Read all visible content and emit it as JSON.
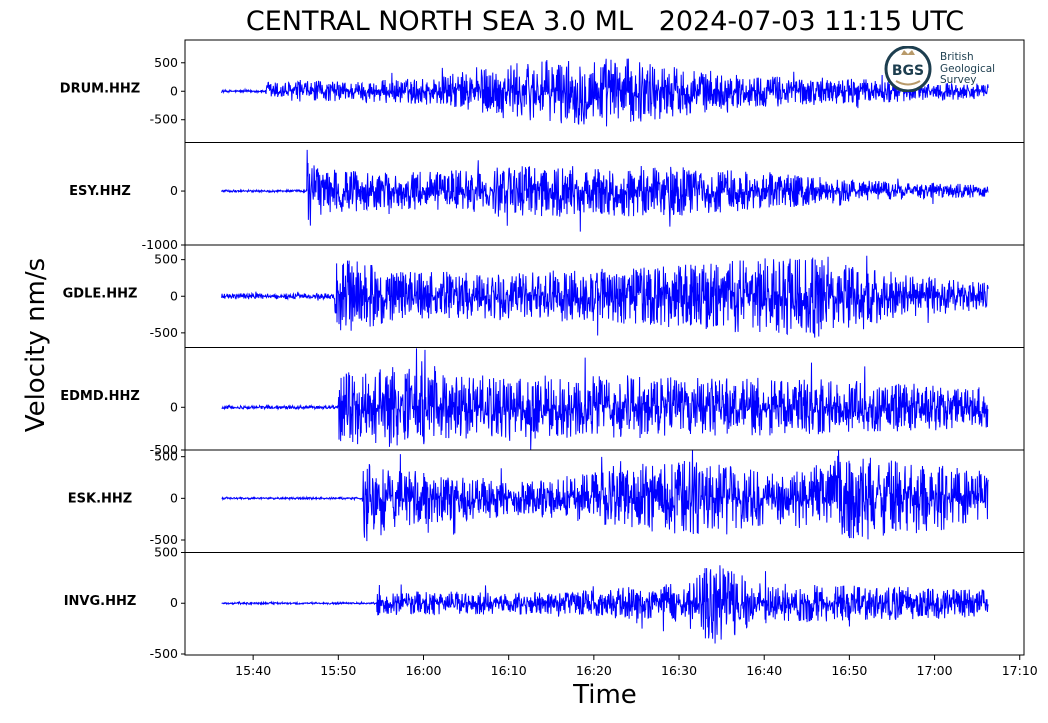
{
  "chart_data": {
    "type": "line",
    "title": "CENTRAL NORTH SEA 3.0 ML   2024-07-03 11:15 UTC",
    "xlabel": "Time",
    "ylabel": "Velocity nm/s",
    "x_ticks": [
      "15:40",
      "15:50",
      "16:00",
      "16:10",
      "16:20",
      "16:30",
      "16:40",
      "16:50",
      "17:00",
      "17:10"
    ],
    "x_range": [
      "15:32",
      "17:10.5"
    ],
    "data_start": "15:36.3",
    "data_end": "17:06.3",
    "line_color": "#0000ff",
    "series": [
      {
        "name": "DRUM.HHZ",
        "ylim": [
          -900,
          900
        ],
        "ticks": [
          {
            "v": 500,
            "label": "500"
          },
          {
            "v": 0,
            "label": "0"
          },
          {
            "v": -500,
            "label": "-500"
          }
        ],
        "onset": "15:41.5",
        "noise": 20,
        "envelope": [
          [
            15.0,
            180
          ],
          [
            25.0,
            250
          ],
          [
            33.0,
            480
          ],
          [
            45.0,
            640
          ],
          [
            60.0,
            300
          ],
          [
            85.0,
            160
          ],
          [
            90.0,
            130
          ]
        ]
      },
      {
        "name": "ESY.HHZ",
        "ylim": [
          -1000,
          900
        ],
        "ticks": [
          {
            "v": 0,
            "label": "0"
          },
          {
            "v": -1000,
            "label": "-1000"
          }
        ],
        "onset": "15:46.3",
        "noise": 20,
        "envelope": [
          [
            10.0,
            800
          ],
          [
            11.0,
            450
          ],
          [
            20.0,
            330
          ],
          [
            40.0,
            500
          ],
          [
            55.0,
            450
          ],
          [
            75.0,
            200
          ],
          [
            90.0,
            120
          ]
        ]
      },
      {
        "name": "GDLE.HHZ",
        "ylim": [
          -700,
          700
        ],
        "ticks": [
          {
            "v": 500,
            "label": "500"
          },
          {
            "v": 0,
            "label": "0"
          },
          {
            "v": -500,
            "label": "-500"
          }
        ],
        "onset": "15:49.6",
        "noise": 40,
        "envelope": [
          [
            13.3,
            580
          ],
          [
            20.0,
            360
          ],
          [
            30.0,
            320
          ],
          [
            50.0,
            400
          ],
          [
            70.0,
            580
          ],
          [
            80.0,
            300
          ],
          [
            90.0,
            180
          ]
        ]
      },
      {
        "name": "EDMD.HHZ",
        "ylim": [
          -500,
          700
        ],
        "ticks": [
          {
            "v": 0,
            "label": "0"
          },
          {
            "v": -500,
            "label": "-500"
          }
        ],
        "onset": "15:49.9",
        "noise": 20,
        "envelope": [
          [
            13.6,
            420
          ],
          [
            20.0,
            480
          ],
          [
            30.0,
            380
          ],
          [
            50.0,
            360
          ],
          [
            70.0,
            330
          ],
          [
            90.0,
            240
          ]
        ]
      },
      {
        "name": "ESK.HHZ",
        "ylim": [
          -650,
          580
        ],
        "ticks": [
          {
            "v": 500,
            "label": "500"
          },
          {
            "v": 0,
            "label": "0"
          },
          {
            "v": -500,
            "label": "-500"
          }
        ],
        "onset": "15:52.8",
        "noise": 12,
        "envelope": [
          [
            16.5,
            560
          ],
          [
            20.0,
            380
          ],
          [
            35.0,
            200
          ],
          [
            55.0,
            460
          ],
          [
            65.0,
            300
          ],
          [
            75.0,
            520
          ],
          [
            90.0,
            320
          ]
        ]
      },
      {
        "name": "INVG.HHZ",
        "ylim": [
          -510,
          500
        ],
        "ticks": [
          {
            "v": 500,
            "label": "500"
          },
          {
            "v": 0,
            "label": "0"
          },
          {
            "v": -500,
            "label": "-500"
          }
        ],
        "onset": "15:54.5",
        "noise": 10,
        "envelope": [
          [
            18.2,
            120
          ],
          [
            40.0,
            110
          ],
          [
            54.0,
            200
          ],
          [
            57.0,
            450
          ],
          [
            63.0,
            200
          ],
          [
            90.0,
            140
          ]
        ]
      }
    ]
  },
  "logo": {
    "abbr": "BGS",
    "line1": "British",
    "line2": "Geological",
    "line3": "Survey"
  }
}
